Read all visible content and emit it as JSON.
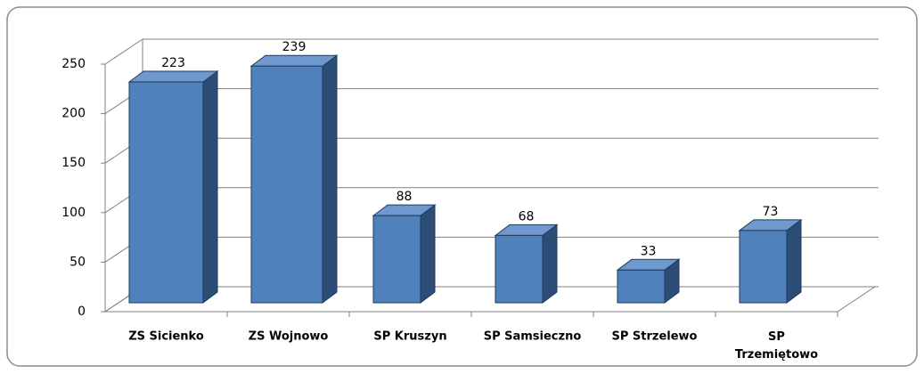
{
  "chart_data": {
    "type": "bar3d",
    "categories": [
      "ZS Sicienko",
      "ZS Wojnowo",
      "SP Kruszyn",
      "SP Samsieczno",
      "SP Strzelewo",
      "SP Trzemiętowo"
    ],
    "values": [
      223,
      239,
      88,
      68,
      33,
      73
    ],
    "color": "#4f81bd",
    "ylim": [
      0,
      250
    ],
    "yticks": [
      0,
      50,
      100,
      150,
      200,
      250
    ],
    "grid": true
  }
}
